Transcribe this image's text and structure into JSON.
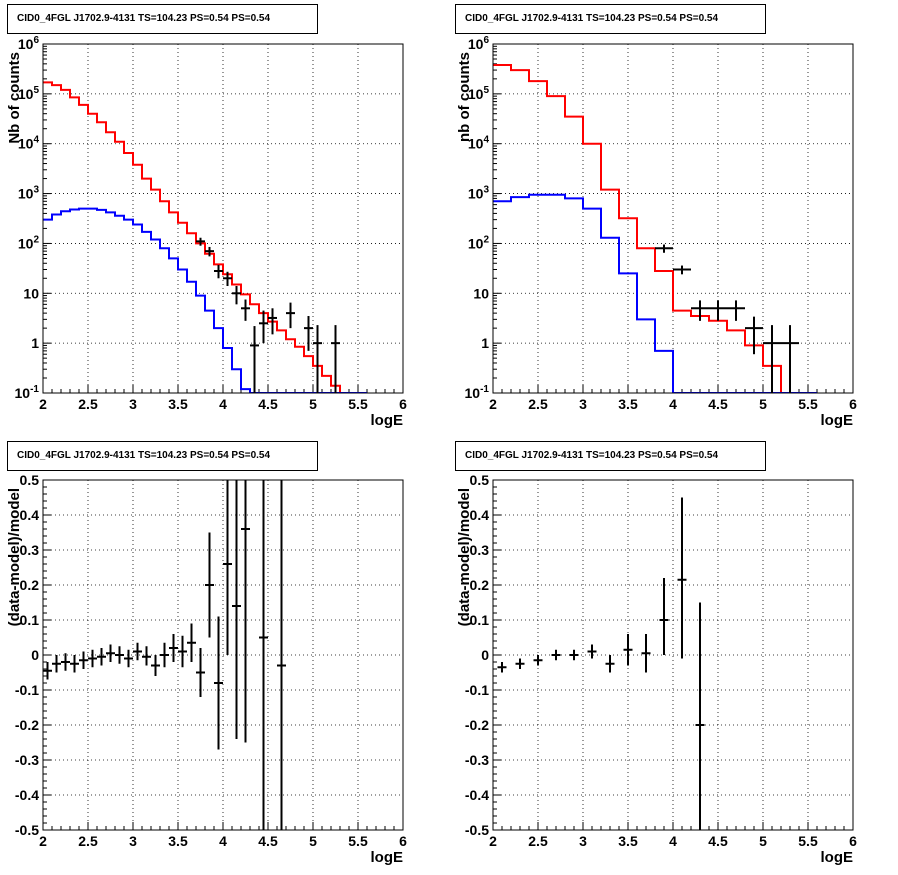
{
  "chart_data": [
    {
      "type": "histogram",
      "title": "CID0_4FGL J1702.9-4131 TS=104.23 PS=0.54 PS=0.54",
      "xlabel": "logE",
      "ylabel": "Nb of counts",
      "yscale": "log",
      "xlim": [
        2,
        6
      ],
      "ylim": [
        0.1,
        1000000
      ],
      "grid": true,
      "x_ticks": [
        "2",
        "2.5",
        "3",
        "3.5",
        "4",
        "4.5",
        "5",
        "5.5",
        "6"
      ],
      "y_ticks": [
        "10^-1",
        "1",
        "10",
        "10^2",
        "10^3",
        "10^4",
        "10^5",
        "10^6"
      ],
      "bin_edges": [
        2.0,
        2.1,
        2.2,
        2.3,
        2.4,
        2.5,
        2.6,
        2.7,
        2.8,
        2.9,
        3.0,
        3.1,
        3.2,
        3.3,
        3.4,
        3.5,
        3.6,
        3.7,
        3.8,
        3.9,
        4.0,
        4.1,
        4.2,
        4.3,
        4.4,
        4.5,
        4.6,
        4.7,
        4.8,
        4.9,
        5.0,
        5.1,
        5.2,
        5.3,
        5.4,
        5.5,
        5.6
      ],
      "series": [
        {
          "color": "#ff0000",
          "values": [
            170000,
            150000,
            120000,
            85000,
            60000,
            40000,
            27000,
            17000,
            11000,
            6500,
            3800,
            2000,
            1200,
            700,
            420,
            260,
            160,
            100,
            62,
            38,
            24,
            15,
            9.5,
            6,
            4,
            2.7,
            1.8,
            1.2,
            0.85,
            0.55,
            0.35,
            0.22,
            0.14,
            0.1,
            0.1,
            0.1
          ]
        },
        {
          "color": "#0000ff",
          "values": [
            300,
            380,
            440,
            480,
            500,
            500,
            470,
            420,
            360,
            300,
            240,
            170,
            120,
            80,
            50,
            30,
            17,
            9,
            4.5,
            2,
            0.8,
            0.3,
            0.12,
            0.1,
            0.1,
            0.1,
            0.1,
            0.1,
            0.1,
            0.1,
            0.1,
            0.1,
            0.1,
            0.1,
            0.1,
            0.1
          ]
        }
      ],
      "points": [
        {
          "x": 3.75,
          "y": 110,
          "ylo": 90,
          "yhi": 130
        },
        {
          "x": 3.85,
          "y": 70,
          "ylo": 55,
          "yhi": 85
        },
        {
          "x": 3.95,
          "y": 28,
          "ylo": 20,
          "yhi": 37
        },
        {
          "x": 4.05,
          "y": 20,
          "ylo": 14,
          "yhi": 27
        },
        {
          "x": 4.15,
          "y": 10,
          "ylo": 6,
          "yhi": 14
        },
        {
          "x": 4.25,
          "y": 5,
          "ylo": 2.8,
          "yhi": 7.5
        },
        {
          "x": 4.35,
          "y": 0.9,
          "ylo": 0.1,
          "yhi": 2.2
        },
        {
          "x": 4.45,
          "y": 2.5,
          "ylo": 1.0,
          "yhi": 4.5
        },
        {
          "x": 4.55,
          "y": 3.2,
          "ylo": 1.5,
          "yhi": 5.0
        },
        {
          "x": 4.75,
          "y": 4,
          "ylo": 2.0,
          "yhi": 6.5
        },
        {
          "x": 4.95,
          "y": 2,
          "ylo": 0.7,
          "yhi": 3.5
        },
        {
          "x": 5.05,
          "y": 1,
          "ylo": 0.1,
          "yhi": 2.3
        },
        {
          "x": 5.25,
          "y": 1,
          "ylo": 0.1,
          "yhi": 2.3
        }
      ]
    },
    {
      "type": "histogram",
      "title": "CID0_4FGL J1702.9-4131 TS=104.23 PS=0.54 PS=0.54",
      "xlabel": "logE",
      "ylabel": "nb of counts",
      "yscale": "log",
      "xlim": [
        2,
        6
      ],
      "ylim": [
        0.1,
        1000000
      ],
      "grid": true,
      "x_ticks": [
        "2",
        "2.5",
        "3",
        "3.5",
        "4",
        "4.5",
        "5",
        "5.5",
        "6"
      ],
      "y_ticks": [
        "10^-1",
        "1",
        "10",
        "10^2",
        "10^3",
        "10^4",
        "10^5",
        "10^6"
      ],
      "bin_edges": [
        2.0,
        2.2,
        2.4,
        2.6,
        2.8,
        3.0,
        3.2,
        3.4,
        3.6,
        3.8,
        4.0,
        4.2,
        4.4,
        4.6,
        4.8,
        5.0,
        5.2,
        5.4,
        5.6
      ],
      "series": [
        {
          "color": "#ff0000",
          "values": [
            380000,
            300000,
            180000,
            90000,
            35000,
            10000,
            1200,
            320,
            80,
            28,
            4.5,
            3.5,
            2.8,
            1.8,
            0.9,
            0.35,
            0.1,
            0.1
          ]
        },
        {
          "color": "#0000ff",
          "values": [
            700,
            850,
            950,
            950,
            800,
            500,
            130,
            25,
            3,
            0.7,
            0.1,
            0.1,
            0.1,
            0.1,
            0.1,
            0.1,
            0.1,
            0.1
          ]
        }
      ],
      "points": [
        {
          "x": 3.9,
          "y": 80,
          "ylo": 65,
          "yhi": 95
        },
        {
          "x": 4.1,
          "y": 30,
          "ylo": 24,
          "yhi": 36
        },
        {
          "x": 4.3,
          "y": 5,
          "ylo": 2.8,
          "yhi": 7.2
        },
        {
          "x": 4.5,
          "y": 5,
          "ylo": 2.8,
          "yhi": 7.2
        },
        {
          "x": 4.7,
          "y": 5,
          "ylo": 2.8,
          "yhi": 7.2
        },
        {
          "x": 4.9,
          "y": 2,
          "ylo": 0.6,
          "yhi": 3.4
        },
        {
          "x": 5.1,
          "y": 1,
          "ylo": 0.1,
          "yhi": 2.3
        },
        {
          "x": 5.3,
          "y": 1,
          "ylo": 0.1,
          "yhi": 2.3
        }
      ]
    },
    {
      "type": "scatter",
      "title": "CID0_4FGL J1702.9-4131 TS=104.23 PS=0.54 PS=0.54",
      "xlabel": "logE",
      "ylabel": "(data-model)/model",
      "xlim": [
        2,
        6
      ],
      "ylim": [
        -0.5,
        0.5
      ],
      "grid": true,
      "x_ticks": [
        "2",
        "2.5",
        "3",
        "3.5",
        "4",
        "4.5",
        "5",
        "5.5",
        "6"
      ],
      "y_ticks": [
        "-0.5",
        "-0.4",
        "-0.3",
        "-0.2",
        "-0.1",
        "0",
        "0.1",
        "0.2",
        "0.3",
        "0.4",
        "0.5"
      ],
      "points": [
        {
          "x": 2.05,
          "y": -0.045,
          "ylo": -0.07,
          "yhi": -0.02
        },
        {
          "x": 2.15,
          "y": -0.025,
          "ylo": -0.05,
          "yhi": 0.0
        },
        {
          "x": 2.25,
          "y": -0.02,
          "ylo": -0.045,
          "yhi": 0.005
        },
        {
          "x": 2.35,
          "y": -0.025,
          "ylo": -0.05,
          "yhi": 0.0
        },
        {
          "x": 2.45,
          "y": -0.015,
          "ylo": -0.04,
          "yhi": 0.01
        },
        {
          "x": 2.55,
          "y": -0.01,
          "ylo": -0.035,
          "yhi": 0.015
        },
        {
          "x": 2.65,
          "y": -0.005,
          "ylo": -0.03,
          "yhi": 0.02
        },
        {
          "x": 2.75,
          "y": 0.005,
          "ylo": -0.02,
          "yhi": 0.03
        },
        {
          "x": 2.85,
          "y": 0.0,
          "ylo": -0.025,
          "yhi": 0.025
        },
        {
          "x": 2.95,
          "y": -0.01,
          "ylo": -0.035,
          "yhi": 0.015
        },
        {
          "x": 3.05,
          "y": 0.01,
          "ylo": -0.015,
          "yhi": 0.035
        },
        {
          "x": 3.15,
          "y": -0.005,
          "ylo": -0.03,
          "yhi": 0.025
        },
        {
          "x": 3.25,
          "y": -0.03,
          "ylo": -0.06,
          "yhi": 0.0
        },
        {
          "x": 3.35,
          "y": 0.0,
          "ylo": -0.035,
          "yhi": 0.035
        },
        {
          "x": 3.45,
          "y": 0.02,
          "ylo": -0.02,
          "yhi": 0.06
        },
        {
          "x": 3.55,
          "y": 0.01,
          "ylo": -0.035,
          "yhi": 0.055
        },
        {
          "x": 3.65,
          "y": 0.035,
          "ylo": -0.02,
          "yhi": 0.09
        },
        {
          "x": 3.75,
          "y": -0.05,
          "ylo": -0.12,
          "yhi": 0.02
        },
        {
          "x": 3.85,
          "y": 0.2,
          "ylo": 0.05,
          "yhi": 0.35
        },
        {
          "x": 3.95,
          "y": -0.08,
          "ylo": -0.27,
          "yhi": 0.11
        },
        {
          "x": 4.05,
          "y": 0.26,
          "ylo": 0.0,
          "yhi": 0.52
        },
        {
          "x": 4.15,
          "y": 0.14,
          "ylo": -0.24,
          "yhi": 0.52
        },
        {
          "x": 4.25,
          "y": 0.36,
          "ylo": -0.25,
          "yhi": 0.97
        },
        {
          "x": 4.45,
          "y": 0.05,
          "ylo": -0.6,
          "yhi": 0.7
        },
        {
          "x": 4.65,
          "y": -0.03,
          "ylo": -0.6,
          "yhi": 0.6
        }
      ]
    },
    {
      "type": "scatter",
      "title": "CID0_4FGL J1702.9-4131 TS=104.23 PS=0.54 PS=0.54",
      "xlabel": "logE",
      "ylabel": "(data-model)/model",
      "xlim": [
        2,
        6
      ],
      "ylim": [
        -0.5,
        0.5
      ],
      "grid": true,
      "x_ticks": [
        "2",
        "2.5",
        "3",
        "3.5",
        "4",
        "4.5",
        "5",
        "5.5",
        "6"
      ],
      "y_ticks": [
        "-0.5",
        "-0.4",
        "-0.3",
        "-0.2",
        "-0.1",
        "0",
        "0.1",
        "0.2",
        "0.3",
        "0.4",
        "0.5"
      ],
      "points": [
        {
          "x": 2.1,
          "y": -0.035,
          "ylo": -0.05,
          "yhi": -0.02
        },
        {
          "x": 2.3,
          "y": -0.025,
          "ylo": -0.04,
          "yhi": -0.01
        },
        {
          "x": 2.5,
          "y": -0.015,
          "ylo": -0.03,
          "yhi": 0.0
        },
        {
          "x": 2.7,
          "y": 0.0,
          "ylo": -0.015,
          "yhi": 0.015
        },
        {
          "x": 2.9,
          "y": 0.0,
          "ylo": -0.015,
          "yhi": 0.015
        },
        {
          "x": 3.1,
          "y": 0.01,
          "ylo": -0.01,
          "yhi": 0.03
        },
        {
          "x": 3.3,
          "y": -0.025,
          "ylo": -0.05,
          "yhi": 0.0
        },
        {
          "x": 3.5,
          "y": 0.015,
          "ylo": -0.03,
          "yhi": 0.06
        },
        {
          "x": 3.7,
          "y": 0.005,
          "ylo": -0.05,
          "yhi": 0.06
        },
        {
          "x": 3.9,
          "y": 0.1,
          "ylo": 0.0,
          "yhi": 0.22
        },
        {
          "x": 4.1,
          "y": 0.215,
          "ylo": -0.01,
          "yhi": 0.45
        },
        {
          "x": 4.3,
          "y": -0.2,
          "ylo": -0.55,
          "yhi": 0.15
        }
      ]
    }
  ]
}
